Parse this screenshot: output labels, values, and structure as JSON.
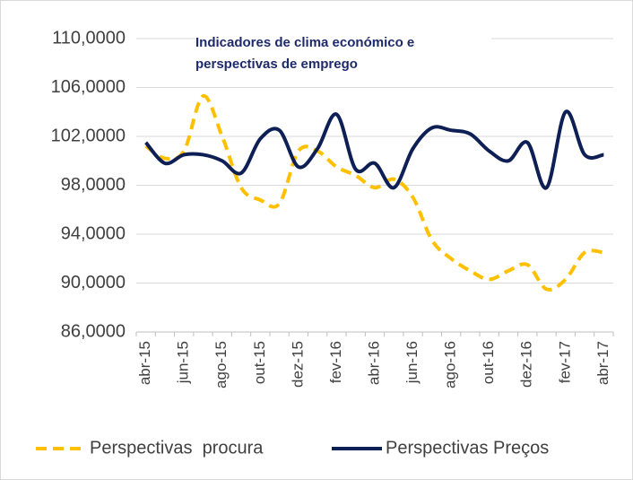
{
  "chart_data": {
    "type": "line",
    "title": "Indicadores de clima económico e perspectivas de emprego",
    "categories": [
      "abr-15",
      null,
      "jun-15",
      null,
      "ago-15",
      null,
      "out-15",
      null,
      "dez-15",
      null,
      "fev-16",
      null,
      "abr-16",
      null,
      "jun-16",
      null,
      "ago-16",
      null,
      "out-16",
      null,
      "dez-16",
      null,
      "fev-17",
      null,
      "abr-17"
    ],
    "series": [
      {
        "name": "Perspectivas  procura",
        "color": "#ffc000",
        "dash": true,
        "values": [
          101.2,
          100.2,
          100.8,
          105.3,
          102.0,
          97.8,
          96.8,
          96.5,
          100.8,
          100.8,
          99.5,
          98.8,
          97.8,
          98.5,
          97.0,
          93.5,
          92.0,
          91.0,
          90.3,
          91.0,
          91.5,
          89.5,
          90.3,
          92.5,
          92.5
        ]
      },
      {
        "name": "Perspectivas Preços",
        "color": "#0e1f55",
        "dash": false,
        "values": [
          101.5,
          99.8,
          100.5,
          100.5,
          100.0,
          99.0,
          101.8,
          102.5,
          99.5,
          101.0,
          103.8,
          99.3,
          99.8,
          97.8,
          101.0,
          102.7,
          102.5,
          102.2,
          100.8,
          100.0,
          101.5,
          97.8,
          104.0,
          100.5,
          100.5
        ]
      }
    ],
    "ylim": [
      86,
      110
    ],
    "yticks": [
      {
        "value": 86,
        "label": "86,0000"
      },
      {
        "value": 90,
        "label": "90,0000"
      },
      {
        "value": 94,
        "label": "94,0000"
      },
      {
        "value": 98,
        "label": "98,0000"
      },
      {
        "value": 102,
        "label": "102,0000"
      },
      {
        "value": 106,
        "label": "106,0000"
      },
      {
        "value": 110,
        "label": "110,0000"
      }
    ],
    "grid": true
  }
}
